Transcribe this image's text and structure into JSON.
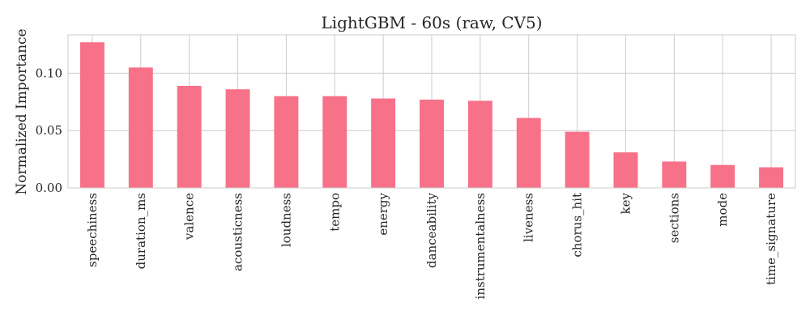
{
  "chart_data": {
    "type": "bar",
    "title": "LightGBM - 60s (raw, CV5)",
    "xlabel": "",
    "ylabel": "Normalized Importance",
    "categories": [
      "speechiness",
      "duration_ms",
      "valence",
      "acousticness",
      "loudness",
      "tempo",
      "energy",
      "danceability",
      "instrumentalness",
      "liveness",
      "chorus_hit",
      "key",
      "sections",
      "mode",
      "time_signature"
    ],
    "values": [
      0.127,
      0.105,
      0.089,
      0.086,
      0.08,
      0.08,
      0.078,
      0.077,
      0.076,
      0.061,
      0.049,
      0.031,
      0.023,
      0.02,
      0.018
    ],
    "ylim": [
      0,
      0.1335
    ],
    "yticks": [
      "0.00",
      "0.05",
      "0.10"
    ],
    "grid": true,
    "bar_color": "#f77189"
  }
}
